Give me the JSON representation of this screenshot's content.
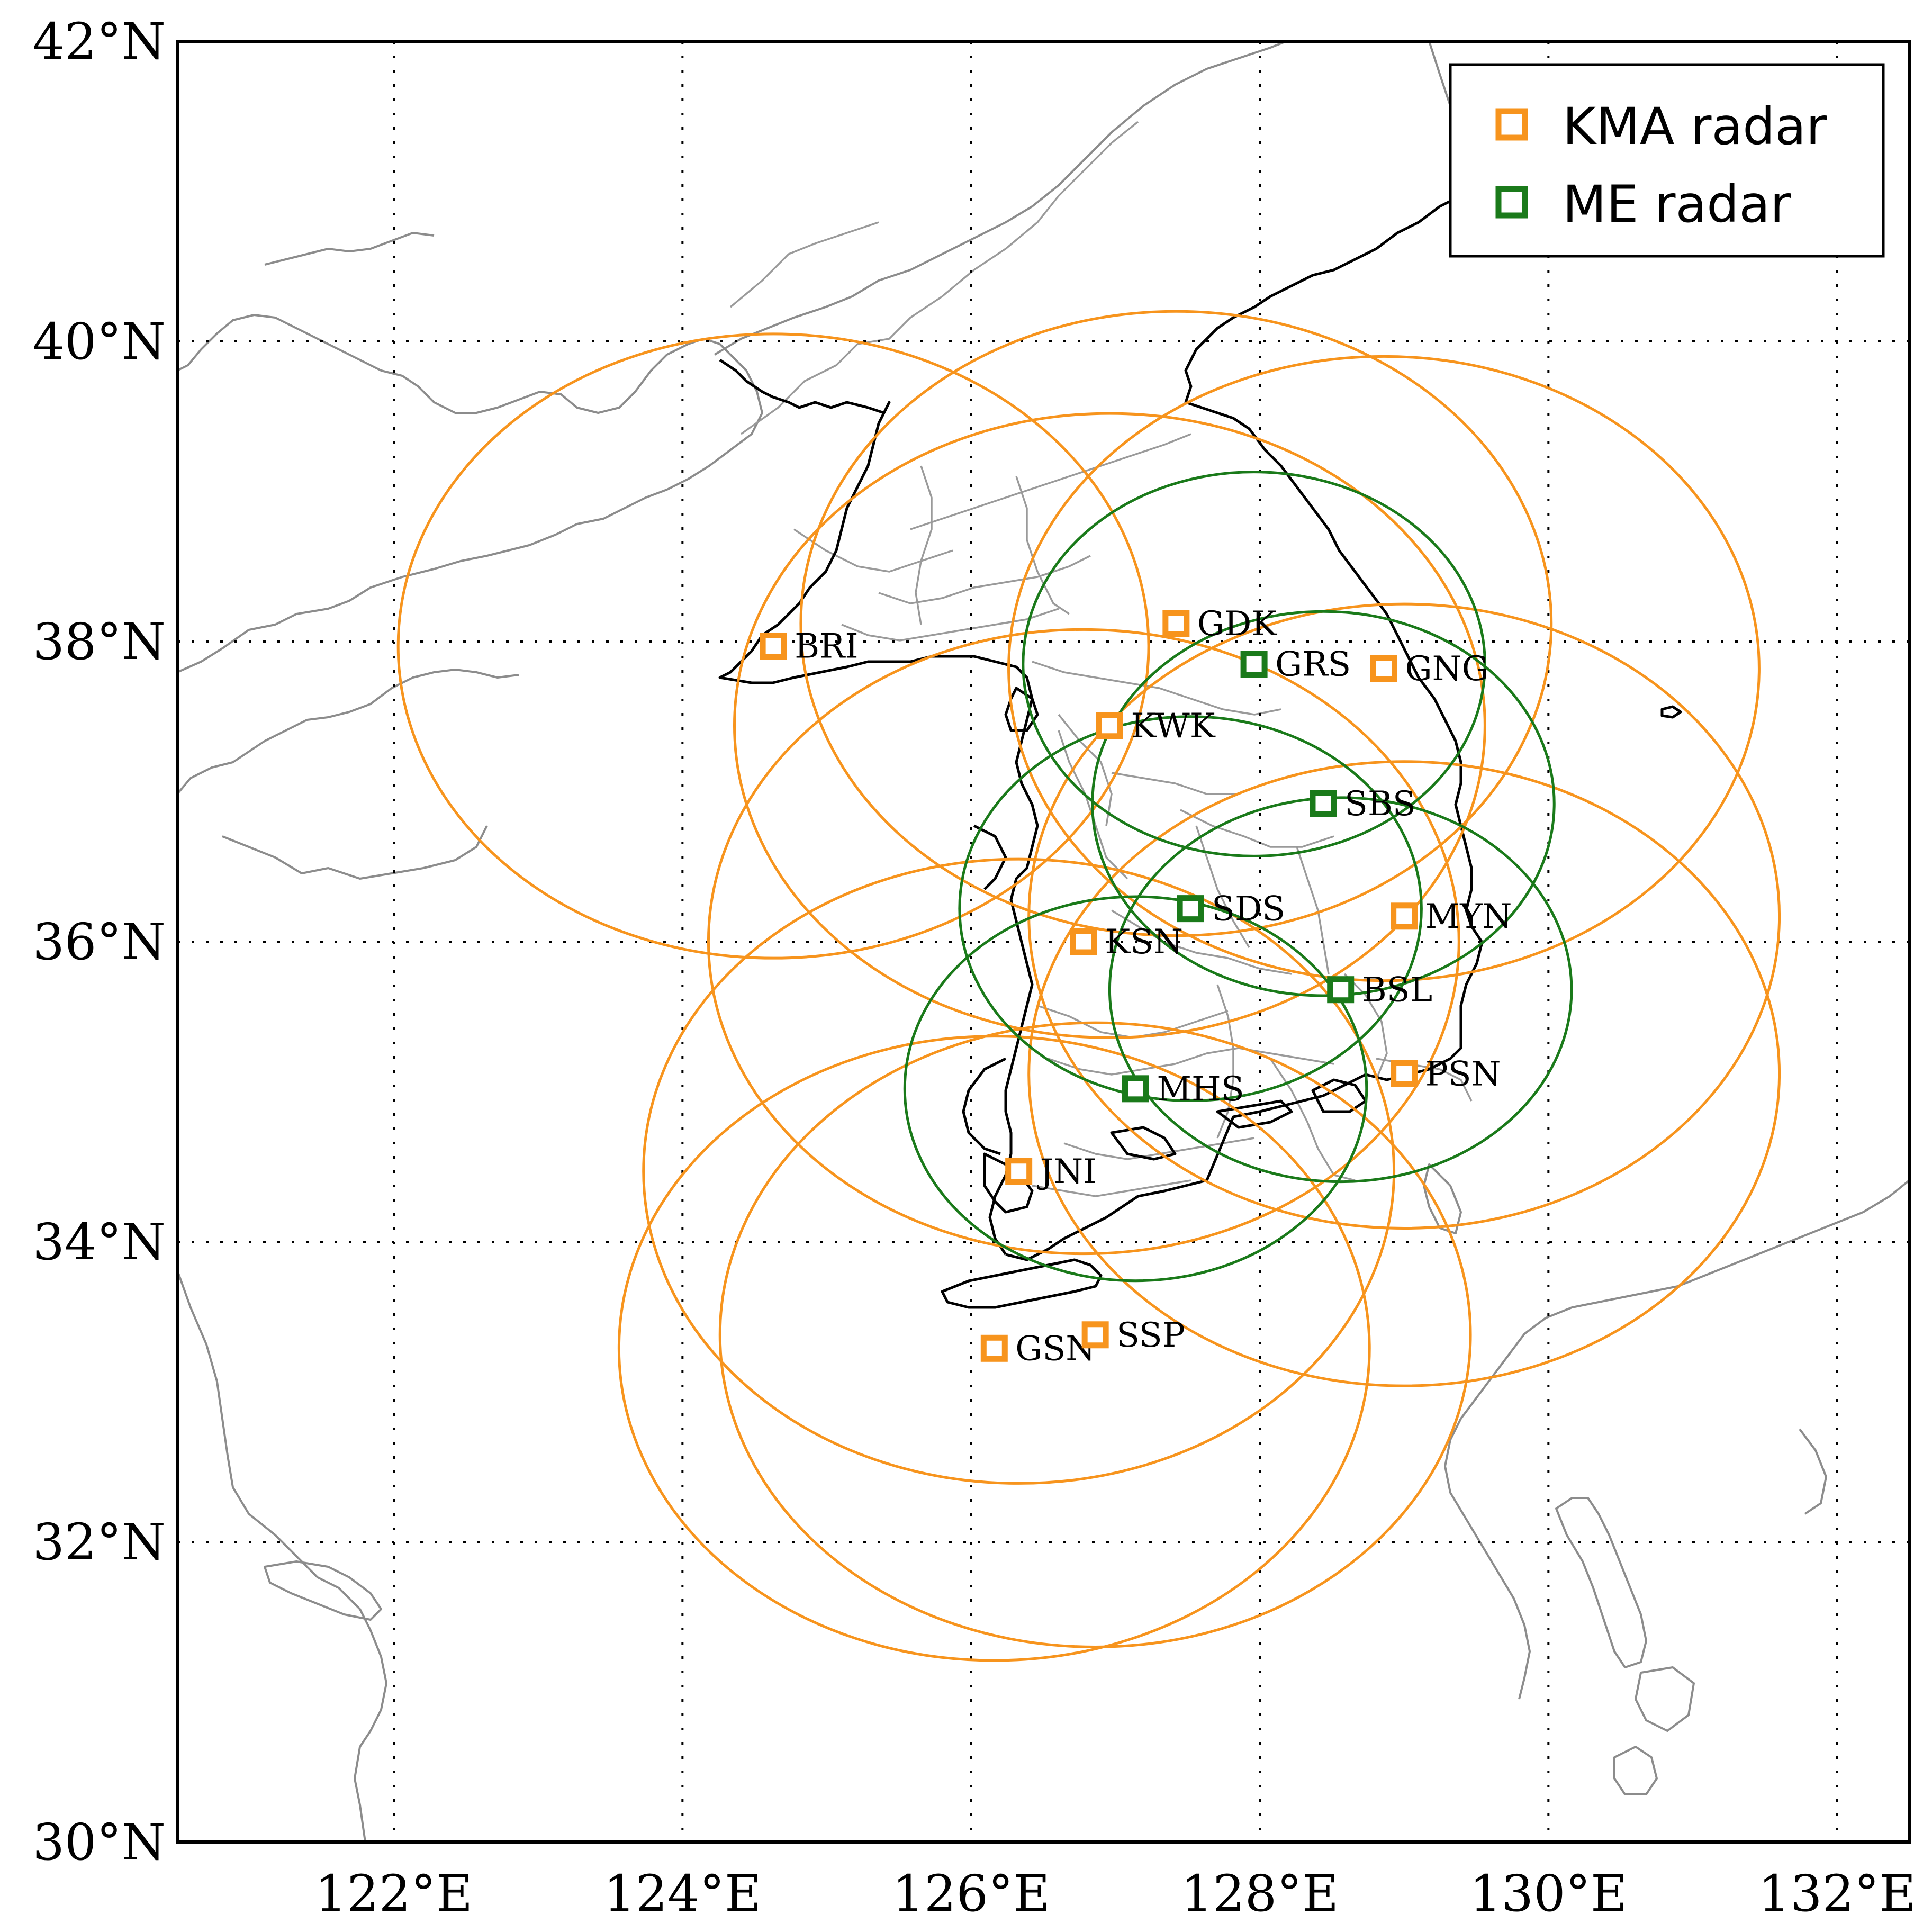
{
  "map": {
    "extent": {
      "lon_min": 120.5,
      "lon_max": 132.5,
      "lat_min": 30,
      "lat_max": 42
    },
    "lon_ticks": [
      {
        "value": 122,
        "label": "122°E"
      },
      {
        "value": 124,
        "label": "124°E"
      },
      {
        "value": 126,
        "label": "126°E"
      },
      {
        "value": 128,
        "label": "128°E"
      },
      {
        "value": 130,
        "label": "130°E"
      },
      {
        "value": 132,
        "label": "132°E"
      }
    ],
    "lat_ticks": [
      {
        "value": 30,
        "label": "30°N"
      },
      {
        "value": 32,
        "label": "32°N"
      },
      {
        "value": 34,
        "label": "34°N"
      },
      {
        "value": 36,
        "label": "36°N"
      },
      {
        "value": 38,
        "label": "38°N"
      },
      {
        "value": 40,
        "label": "40°N"
      },
      {
        "value": 42,
        "label": "42°N"
      }
    ],
    "gridlines": true
  },
  "legend": {
    "position": "top-right",
    "items": [
      {
        "label": "KMA radar",
        "color": "#f7941d"
      },
      {
        "label": "ME radar",
        "color": "#1a7a1a"
      }
    ]
  },
  "colors": {
    "kma": "#f7941d",
    "me": "#1a7a1a",
    "coast": "#8c8c8c",
    "korea_coast": "#000000"
  },
  "stations": [
    {
      "code": "BRI",
      "network": "KMA",
      "lon": 124.63,
      "lat": 37.97,
      "range_deg": 2.6
    },
    {
      "code": "GDK",
      "network": "KMA",
      "lon": 127.42,
      "lat": 38.12,
      "range_deg": 2.6
    },
    {
      "code": "GNG",
      "network": "KMA",
      "lon": 128.86,
      "lat": 37.82,
      "range_deg": 2.6
    },
    {
      "code": "KWK",
      "network": "KMA",
      "lon": 126.96,
      "lat": 37.44,
      "range_deg": 2.6
    },
    {
      "code": "MYN",
      "network": "KMA",
      "lon": 129.0,
      "lat": 36.17,
      "range_deg": 2.6
    },
    {
      "code": "KSN",
      "network": "KMA",
      "lon": 126.78,
      "lat": 36.0,
      "range_deg": 2.6
    },
    {
      "code": "PSN",
      "network": "KMA",
      "lon": 129.0,
      "lat": 35.12,
      "range_deg": 2.6
    },
    {
      "code": "JNI",
      "network": "KMA",
      "lon": 126.33,
      "lat": 34.47,
      "range_deg": 2.6
    },
    {
      "code": "GSN",
      "network": "KMA",
      "lon": 126.16,
      "lat": 33.29,
      "range_deg": 2.6
    },
    {
      "code": "SSP",
      "network": "KMA",
      "lon": 126.86,
      "lat": 33.38,
      "range_deg": 2.6
    },
    {
      "code": "GRS",
      "network": "ME",
      "lon": 127.96,
      "lat": 37.85,
      "range_deg": 1.6
    },
    {
      "code": "SBS",
      "network": "ME",
      "lon": 128.44,
      "lat": 36.92,
      "range_deg": 1.6
    },
    {
      "code": "SDS",
      "network": "ME",
      "lon": 127.52,
      "lat": 36.22,
      "range_deg": 1.6
    },
    {
      "code": "BSL",
      "network": "ME",
      "lon": 128.56,
      "lat": 35.68,
      "range_deg": 1.6
    },
    {
      "code": "MHS",
      "network": "ME",
      "lon": 127.14,
      "lat": 35.02,
      "range_deg": 1.6
    }
  ]
}
